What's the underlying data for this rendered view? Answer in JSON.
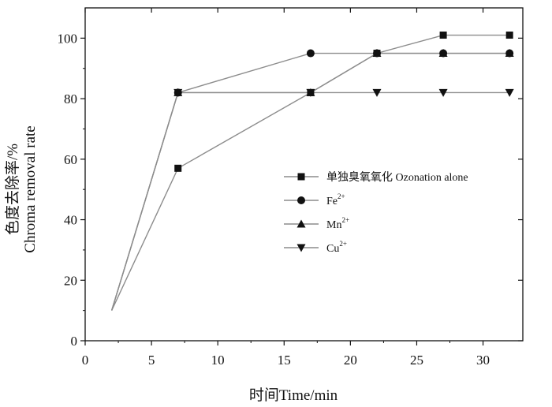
{
  "chart_data": {
    "type": "line",
    "title": "",
    "xlabel": "时间Time/min",
    "ylabel_cn": "色度去除率/%",
    "ylabel_en": "Chroma removal rate",
    "xlim": [
      0,
      33
    ],
    "ylim": [
      0,
      110
    ],
    "xticks": [
      0,
      5,
      10,
      15,
      20,
      25,
      30
    ],
    "yticks": [
      0,
      20,
      40,
      60,
      80,
      100
    ],
    "grid": false,
    "legend_position": "right-middle",
    "line_color": "#8c8c8c",
    "marker_color": "#111111",
    "series": [
      {
        "name": "单独臭氧氧化 Ozonation alone",
        "marker": "square",
        "x": [
          2,
          7,
          17,
          22,
          27,
          32
        ],
        "y": [
          10,
          57,
          82,
          95,
          101,
          101
        ]
      },
      {
        "name": "Fe",
        "sup": "2+",
        "marker": "circle",
        "x": [
          2,
          7,
          17,
          22,
          27,
          32
        ],
        "y": [
          10,
          82,
          95,
          95,
          95,
          95
        ]
      },
      {
        "name": "Mn",
        "sup": "2+",
        "marker": "triangle-up",
        "x": [
          2,
          7,
          17,
          22,
          27,
          32
        ],
        "y": [
          10,
          82,
          82,
          95,
          95,
          95
        ]
      },
      {
        "name": "Cu",
        "sup": "2+",
        "marker": "triangle-down",
        "x": [
          2,
          7,
          17,
          22,
          27,
          32
        ],
        "y": [
          10,
          82,
          82,
          82,
          82,
          82
        ]
      }
    ]
  }
}
